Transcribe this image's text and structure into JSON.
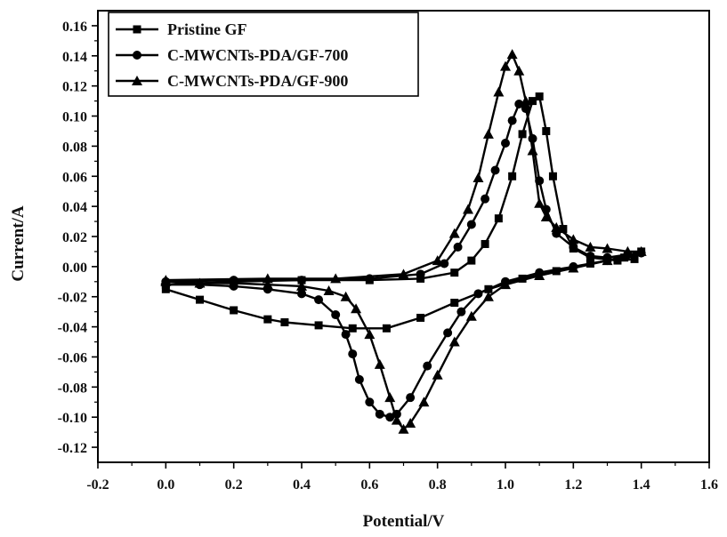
{
  "chart_data": {
    "type": "line",
    "xlabel": "Potential/V",
    "ylabel": "Current/A",
    "xlim": [
      -0.2,
      1.6
    ],
    "ylim": [
      -0.13,
      0.17
    ],
    "x_ticks": [
      "-0.2",
      "0.0",
      "0.2",
      "0.4",
      "0.6",
      "0.8",
      "1.0",
      "1.2",
      "1.4",
      "1.6"
    ],
    "y_ticks": [
      "-0.12",
      "-0.10",
      "-0.08",
      "-0.06",
      "-0.04",
      "-0.02",
      "0.00",
      "0.02",
      "0.04",
      "0.06",
      "0.08",
      "0.10",
      "0.12",
      "0.14",
      "0.16"
    ],
    "grid": false,
    "legend_position": "top-left",
    "series": [
      {
        "name": "Pristine GF",
        "marker": "square",
        "points": [
          [
            0.0,
            -0.015
          ],
          [
            0.1,
            -0.022
          ],
          [
            0.2,
            -0.029
          ],
          [
            0.3,
            -0.035
          ],
          [
            0.35,
            -0.037
          ],
          [
            0.45,
            -0.039
          ],
          [
            0.55,
            -0.041
          ],
          [
            0.65,
            -0.041
          ],
          [
            0.75,
            -0.034
          ],
          [
            0.85,
            -0.024
          ],
          [
            0.95,
            -0.015
          ],
          [
            1.05,
            -0.008
          ],
          [
            1.15,
            -0.003
          ],
          [
            1.25,
            0.002
          ],
          [
            1.35,
            0.006
          ],
          [
            1.4,
            0.01
          ],
          [
            1.38,
            0.005
          ],
          [
            1.33,
            0.004
          ],
          [
            1.25,
            0.006
          ],
          [
            1.2,
            0.012
          ],
          [
            1.17,
            0.025
          ],
          [
            1.14,
            0.06
          ],
          [
            1.12,
            0.09
          ],
          [
            1.1,
            0.113
          ],
          [
            1.08,
            0.11
          ],
          [
            1.05,
            0.088
          ],
          [
            1.02,
            0.06
          ],
          [
            0.98,
            0.032
          ],
          [
            0.94,
            0.015
          ],
          [
            0.9,
            0.004
          ],
          [
            0.85,
            -0.004
          ],
          [
            0.75,
            -0.008
          ],
          [
            0.6,
            -0.009
          ],
          [
            0.4,
            -0.009
          ],
          [
            0.2,
            -0.01
          ],
          [
            0.0,
            -0.012
          ]
        ]
      },
      {
        "name": "C-MWCNTs-PDA/GF-700",
        "marker": "circle",
        "points": [
          [
            0.0,
            -0.012
          ],
          [
            0.1,
            -0.012
          ],
          [
            0.2,
            -0.013
          ],
          [
            0.3,
            -0.015
          ],
          [
            0.4,
            -0.018
          ],
          [
            0.45,
            -0.022
          ],
          [
            0.5,
            -0.032
          ],
          [
            0.53,
            -0.045
          ],
          [
            0.55,
            -0.058
          ],
          [
            0.57,
            -0.075
          ],
          [
            0.6,
            -0.09
          ],
          [
            0.63,
            -0.098
          ],
          [
            0.66,
            -0.1
          ],
          [
            0.68,
            -0.098
          ],
          [
            0.72,
            -0.087
          ],
          [
            0.77,
            -0.066
          ],
          [
            0.83,
            -0.044
          ],
          [
            0.87,
            -0.03
          ],
          [
            0.92,
            -0.018
          ],
          [
            1.0,
            -0.01
          ],
          [
            1.1,
            -0.004
          ],
          [
            1.2,
            0.0
          ],
          [
            1.3,
            0.004
          ],
          [
            1.4,
            0.009
          ],
          [
            1.36,
            0.008
          ],
          [
            1.3,
            0.006
          ],
          [
            1.25,
            0.007
          ],
          [
            1.2,
            0.013
          ],
          [
            1.15,
            0.022
          ],
          [
            1.12,
            0.038
          ],
          [
            1.1,
            0.057
          ],
          [
            1.08,
            0.085
          ],
          [
            1.06,
            0.105
          ],
          [
            1.04,
            0.108
          ],
          [
            1.02,
            0.097
          ],
          [
            1.0,
            0.082
          ],
          [
            0.97,
            0.064
          ],
          [
            0.94,
            0.045
          ],
          [
            0.9,
            0.028
          ],
          [
            0.86,
            0.013
          ],
          [
            0.82,
            0.002
          ],
          [
            0.75,
            -0.005
          ],
          [
            0.6,
            -0.008
          ],
          [
            0.4,
            -0.009
          ],
          [
            0.2,
            -0.009
          ],
          [
            0.0,
            -0.01
          ]
        ]
      },
      {
        "name": "C-MWCNTs-PDA/GF-900",
        "marker": "triangle",
        "points": [
          [
            0.0,
            -0.01
          ],
          [
            0.1,
            -0.011
          ],
          [
            0.2,
            -0.011
          ],
          [
            0.3,
            -0.012
          ],
          [
            0.4,
            -0.013
          ],
          [
            0.48,
            -0.016
          ],
          [
            0.53,
            -0.02
          ],
          [
            0.56,
            -0.028
          ],
          [
            0.6,
            -0.045
          ],
          [
            0.63,
            -0.065
          ],
          [
            0.66,
            -0.087
          ],
          [
            0.68,
            -0.102
          ],
          [
            0.7,
            -0.108
          ],
          [
            0.72,
            -0.104
          ],
          [
            0.76,
            -0.09
          ],
          [
            0.8,
            -0.072
          ],
          [
            0.85,
            -0.05
          ],
          [
            0.9,
            -0.033
          ],
          [
            0.95,
            -0.02
          ],
          [
            1.0,
            -0.012
          ],
          [
            1.1,
            -0.006
          ],
          [
            1.2,
            -0.001
          ],
          [
            1.3,
            0.004
          ],
          [
            1.4,
            0.01
          ],
          [
            1.36,
            0.01
          ],
          [
            1.3,
            0.012
          ],
          [
            1.25,
            0.013
          ],
          [
            1.2,
            0.018
          ],
          [
            1.15,
            0.026
          ],
          [
            1.12,
            0.033
          ],
          [
            1.1,
            0.042
          ],
          [
            1.08,
            0.077
          ],
          [
            1.06,
            0.11
          ],
          [
            1.04,
            0.13
          ],
          [
            1.02,
            0.141
          ],
          [
            1.0,
            0.133
          ],
          [
            0.98,
            0.116
          ],
          [
            0.95,
            0.088
          ],
          [
            0.92,
            0.059
          ],
          [
            0.89,
            0.038
          ],
          [
            0.85,
            0.022
          ],
          [
            0.8,
            0.004
          ],
          [
            0.7,
            -0.005
          ],
          [
            0.5,
            -0.008
          ],
          [
            0.3,
            -0.008
          ],
          [
            0.0,
            -0.009
          ]
        ]
      }
    ]
  }
}
